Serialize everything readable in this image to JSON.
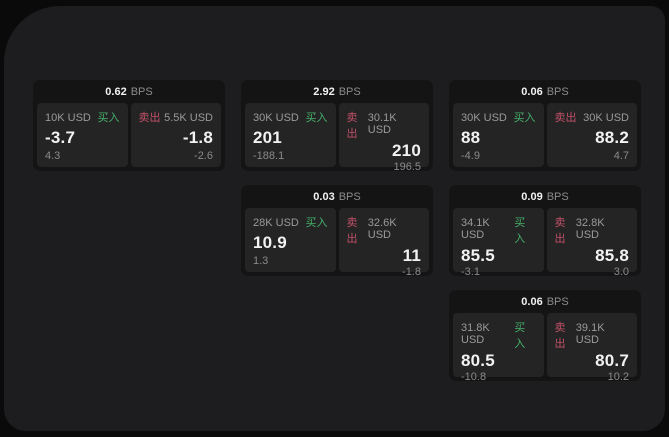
{
  "page": {
    "bg_outer": "#0a0a0a",
    "bg_panel": "#1d1d1f",
    "bg_card": "#141414",
    "bg_tile": "#242425"
  },
  "labels": {
    "bps": "BPS",
    "buy": "买入",
    "sell": "卖出"
  },
  "colors": {
    "buy": "#46b06a",
    "sell": "#c25067",
    "text_primary": "#f2f2f2",
    "text_secondary": "#8c8c8c"
  },
  "cards": [
    {
      "bps": "0.62",
      "buy": {
        "size": "10K USD",
        "price": "-3.7",
        "delta": "4.3"
      },
      "sell": {
        "size": "5.5K USD",
        "price": "-1.8",
        "delta": "-2.6"
      }
    },
    {
      "bps": "2.92",
      "buy": {
        "size": "30K USD",
        "price": "201",
        "delta": "-188.1"
      },
      "sell": {
        "size": "30.1K USD",
        "price": "210",
        "delta": "196.5"
      }
    },
    {
      "bps": "0.06",
      "buy": {
        "size": "30K USD",
        "price": "88",
        "delta": "-4.9"
      },
      "sell": {
        "size": "30K USD",
        "price": "88.2",
        "delta": "4.7"
      }
    },
    {
      "bps": "0.03",
      "buy": {
        "size": "28K USD",
        "price": "10.9",
        "delta": "1.3"
      },
      "sell": {
        "size": "32.6K USD",
        "price": "11",
        "delta": "-1.8"
      }
    },
    {
      "bps": "0.09",
      "buy": {
        "size": "34.1K USD",
        "price": "85.5",
        "delta": "-3.1"
      },
      "sell": {
        "size": "32.8K USD",
        "price": "85.8",
        "delta": "3.0"
      }
    },
    {
      "bps": "0.06",
      "buy": {
        "size": "31.8K USD",
        "price": "80.5",
        "delta": "-10.8"
      },
      "sell": {
        "size": "39.1K USD",
        "price": "80.7",
        "delta": "10.2"
      }
    }
  ]
}
